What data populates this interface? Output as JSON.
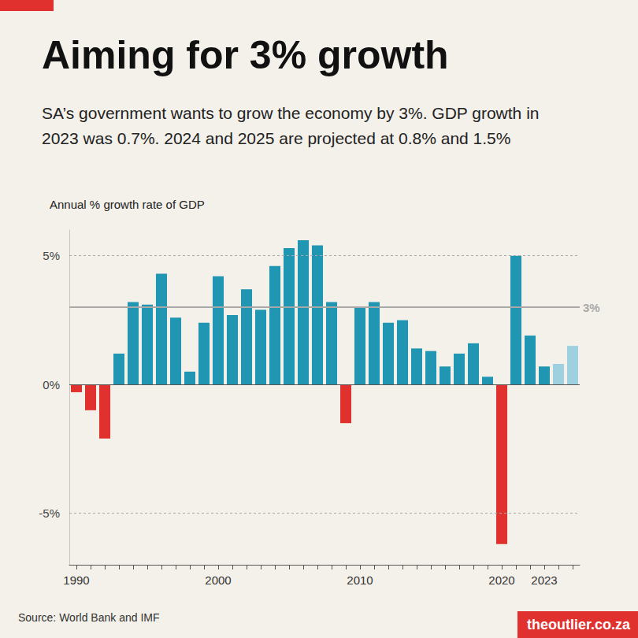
{
  "chart_data": {
    "type": "bar",
    "title": "Aiming for 3% growth",
    "subtitle": "SA’s government wants to grow the economy by 3%. GDP growth in 2023 was 0.7%. 2024 and 2025 are projected at 0.8% and 1.5%",
    "y_label": "Annual % growth rate of GDP",
    "source": "Source: World Bank and IMF",
    "credit": "theoutlier.co.za",
    "categories": [
      "1990",
      null,
      null,
      null,
      null,
      null,
      null,
      null,
      null,
      null,
      "2000",
      null,
      null,
      null,
      null,
      null,
      null,
      null,
      null,
      null,
      "2010",
      null,
      null,
      null,
      null,
      null,
      null,
      null,
      null,
      null,
      "2020",
      null,
      null,
      "2023",
      null,
      null
    ],
    "values": [
      -0.3,
      -1.0,
      -2.1,
      1.2,
      3.2,
      3.1,
      4.3,
      2.6,
      0.5,
      2.4,
      4.2,
      2.7,
      3.7,
      2.9,
      4.6,
      5.3,
      5.6,
      5.4,
      3.2,
      -1.5,
      3.0,
      3.2,
      2.4,
      2.5,
      1.4,
      1.3,
      0.7,
      1.2,
      1.6,
      0.3,
      -6.2,
      5.0,
      1.9,
      0.7,
      0.8,
      1.5
    ],
    "colors": [
      "#e0312f",
      "#e0312f",
      "#e0312f",
      "#2196b3",
      "#2196b3",
      "#2196b3",
      "#2196b3",
      "#2196b3",
      "#2196b3",
      "#2196b3",
      "#2196b3",
      "#2196b3",
      "#2196b3",
      "#2196b3",
      "#2196b3",
      "#2196b3",
      "#2196b3",
      "#2196b3",
      "#2196b3",
      "#e0312f",
      "#2196b3",
      "#2196b3",
      "#2196b3",
      "#2196b3",
      "#2196b3",
      "#2196b3",
      "#2196b3",
      "#2196b3",
      "#2196b3",
      "#2196b3",
      "#e0312f",
      "#2196b3",
      "#2196b3",
      "#2196b3",
      "#9fd0e0",
      "#9fd0e0"
    ],
    "ylim": [
      -7,
      6
    ],
    "yticks": [
      {
        "value": -5,
        "label": "-5%"
      },
      {
        "value": 0,
        "label": "0%"
      },
      {
        "value": 5,
        "label": "5%"
      }
    ],
    "grid": true,
    "annotations": [
      {
        "value": 3,
        "label": "3%"
      }
    ]
  }
}
